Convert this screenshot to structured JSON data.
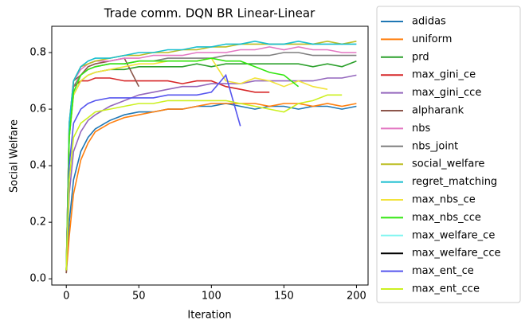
{
  "chart_data": {
    "type": "line",
    "title": "Trade comm. DQN BR Linear-Linear",
    "x_label": "Iteration",
    "y_label": "Social Welfare",
    "x": [
      0,
      2,
      5,
      10,
      15,
      20,
      30,
      40,
      50,
      60,
      70,
      80,
      90,
      100,
      110,
      120,
      130,
      140,
      150,
      160,
      170,
      180,
      190,
      200
    ],
    "xlim": [
      -10,
      208
    ],
    "ylim": [
      -0.022,
      0.893
    ],
    "xticks": [
      0,
      50,
      100,
      150,
      200
    ],
    "yticks": [
      {
        "value": 0,
        "label": "0.0"
      },
      0.2,
      0.4,
      0.6,
      0.8
    ],
    "grid": false,
    "legend": "outside right",
    "series": [
      {
        "name": "adidas",
        "color": "#1f77b4",
        "values": [
          0.02,
          0.2,
          0.35,
          0.45,
          0.5,
          0.53,
          0.56,
          0.58,
          0.59,
          0.59,
          0.6,
          0.6,
          0.61,
          0.61,
          0.62,
          0.61,
          0.6,
          0.61,
          0.61,
          0.6,
          0.61,
          0.61,
          0.6,
          0.61
        ]
      },
      {
        "name": "uniform",
        "color": "#ff7f0e",
        "values": [
          0.02,
          0.15,
          0.3,
          0.42,
          0.48,
          0.52,
          0.55,
          0.57,
          0.58,
          0.59,
          0.6,
          0.6,
          0.61,
          0.62,
          0.62,
          0.62,
          0.62,
          0.61,
          0.62,
          0.62,
          0.61,
          0.62,
          0.61,
          0.62
        ]
      },
      {
        "name": "prd",
        "color": "#2ca02c",
        "values": [
          0.03,
          0.5,
          0.65,
          0.7,
          0.72,
          0.73,
          0.74,
          0.74,
          0.75,
          0.75,
          0.75,
          0.75,
          0.76,
          0.75,
          0.76,
          0.76,
          0.76,
          0.76,
          0.76,
          0.76,
          0.75,
          0.76,
          0.75,
          0.77
        ]
      },
      {
        "name": "max_gini_ce",
        "color": "#d62728",
        "values": [
          0.03,
          0.55,
          0.68,
          0.7,
          0.7,
          0.71,
          0.71,
          0.7,
          0.7,
          0.7,
          0.7,
          0.69,
          0.7,
          0.7,
          0.68,
          0.67,
          0.66,
          0.66,
          null,
          null,
          null,
          null,
          null,
          null
        ]
      },
      {
        "name": "max_gini_cce",
        "color": "#9467bd",
        "values": [
          0.03,
          0.3,
          0.45,
          0.52,
          0.56,
          0.58,
          0.61,
          0.63,
          0.65,
          0.66,
          0.67,
          0.68,
          0.68,
          0.69,
          0.69,
          0.69,
          0.7,
          0.7,
          0.7,
          0.7,
          0.7,
          0.71,
          0.71,
          0.72
        ]
      },
      {
        "name": "alpharank",
        "color": "#8c564b",
        "values": [
          0.02,
          0.5,
          0.7,
          0.72,
          0.75,
          0.76,
          0.77,
          0.78,
          0.68,
          null,
          null,
          null,
          null,
          null,
          null,
          null,
          null,
          null,
          null,
          null,
          null,
          null,
          null,
          null
        ]
      },
      {
        "name": "nbs",
        "color": "#e377c2",
        "values": [
          0.03,
          0.55,
          0.7,
          0.74,
          0.76,
          0.77,
          0.77,
          0.78,
          0.78,
          0.79,
          0.79,
          0.79,
          0.8,
          0.8,
          0.8,
          0.81,
          0.81,
          0.82,
          0.81,
          0.82,
          0.81,
          0.81,
          0.8,
          0.8
        ]
      },
      {
        "name": "nbs_joint",
        "color": "#7f7f7f",
        "values": [
          0.03,
          0.5,
          0.68,
          0.72,
          0.74,
          0.75,
          0.76,
          0.76,
          0.77,
          0.77,
          0.78,
          0.78,
          0.78,
          0.78,
          0.79,
          0.79,
          0.79,
          0.79,
          0.8,
          0.8,
          0.79,
          0.79,
          0.79,
          0.79
        ]
      },
      {
        "name": "social_welfare",
        "color": "#bcbd22",
        "values": [
          0.03,
          0.55,
          0.7,
          0.75,
          0.76,
          0.77,
          0.78,
          0.79,
          0.79,
          0.8,
          0.8,
          0.81,
          0.81,
          0.82,
          0.82,
          0.83,
          0.83,
          0.83,
          0.83,
          0.83,
          0.83,
          0.84,
          0.83,
          0.84
        ]
      },
      {
        "name": "regret_matching",
        "color": "#17becf",
        "values": [
          0.03,
          0.55,
          0.7,
          0.75,
          0.77,
          0.78,
          0.78,
          0.79,
          0.8,
          0.8,
          0.81,
          0.81,
          0.82,
          0.82,
          0.83,
          0.83,
          0.84,
          0.83,
          0.83,
          0.84,
          0.83,
          0.83,
          0.83,
          0.83
        ]
      },
      {
        "name": "max_nbs_ce",
        "color": "#f2e33a",
        "values": [
          0.03,
          0.5,
          0.65,
          0.7,
          0.72,
          0.73,
          0.74,
          0.75,
          0.76,
          0.76,
          0.77,
          0.77,
          0.77,
          0.78,
          0.7,
          0.69,
          0.71,
          0.7,
          0.68,
          0.7,
          0.68,
          0.67,
          null,
          null
        ]
      },
      {
        "name": "max_nbs_cce",
        "color": "#33e611",
        "values": [
          0.03,
          0.5,
          0.66,
          0.72,
          0.74,
          0.75,
          0.76,
          0.76,
          0.77,
          0.77,
          0.77,
          0.77,
          0.77,
          0.78,
          0.77,
          0.77,
          0.75,
          0.73,
          0.72,
          0.68,
          null,
          null,
          null,
          null
        ]
      },
      {
        "name": "max_welfare_ce",
        "color": "#7ff5f0",
        "values": [
          null,
          null,
          null,
          null,
          null,
          null,
          null,
          null,
          null,
          null,
          null,
          null,
          null,
          null,
          null,
          null,
          null,
          null,
          null,
          null,
          null,
          null,
          null,
          null
        ]
      },
      {
        "name": "max_welfare_cce",
        "color": "#000000",
        "values": [
          null,
          null,
          null,
          null,
          null,
          null,
          null,
          null,
          null,
          null,
          null,
          null,
          null,
          null,
          null,
          null,
          null,
          null,
          null,
          null,
          null,
          null,
          null,
          null
        ]
      },
      {
        "name": "max_ent_ce",
        "color": "#5555ee",
        "values": [
          0.03,
          0.4,
          0.55,
          0.6,
          0.62,
          0.63,
          0.64,
          0.64,
          0.64,
          0.64,
          0.65,
          0.65,
          0.65,
          0.66,
          0.72,
          0.54,
          null,
          null,
          null,
          null,
          null,
          null,
          null,
          null
        ]
      },
      {
        "name": "max_ent_cce",
        "color": "#ccf020",
        "values": [
          0.03,
          0.35,
          0.5,
          0.55,
          0.57,
          0.59,
          0.6,
          0.61,
          0.62,
          0.62,
          0.63,
          0.63,
          0.63,
          0.63,
          0.63,
          0.62,
          0.61,
          0.6,
          0.59,
          0.62,
          0.63,
          0.65,
          0.65,
          null
        ]
      }
    ]
  }
}
